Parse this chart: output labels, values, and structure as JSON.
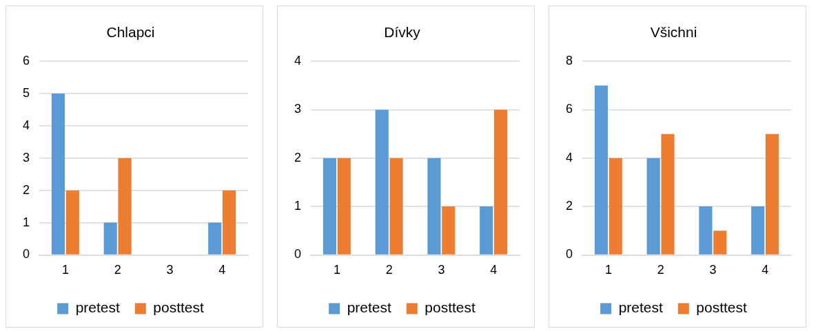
{
  "chart_data": [
    {
      "type": "bar",
      "title": "Chlapci",
      "categories": [
        "1",
        "2",
        "3",
        "4"
      ],
      "series": [
        {
          "name": "pretest",
          "color": "#5b9bd5",
          "values": [
            5,
            1,
            0,
            1
          ]
        },
        {
          "name": "posttest",
          "color": "#ed7d31",
          "values": [
            2,
            3,
            0,
            2
          ]
        }
      ],
      "ylim": [
        0,
        6
      ],
      "yticks": [
        0,
        1,
        2,
        3,
        4,
        5,
        6
      ],
      "grid": "y",
      "legend": "bottom"
    },
    {
      "type": "bar",
      "title": "Dívky",
      "categories": [
        "1",
        "2",
        "3",
        "4"
      ],
      "series": [
        {
          "name": "pretest",
          "color": "#5b9bd5",
          "values": [
            2,
            3,
            2,
            1
          ]
        },
        {
          "name": "posttest",
          "color": "#ed7d31",
          "values": [
            2,
            2,
            1,
            3
          ]
        }
      ],
      "ylim": [
        0,
        4
      ],
      "yticks": [
        0,
        1,
        2,
        3,
        4
      ],
      "grid": "y",
      "legend": "bottom"
    },
    {
      "type": "bar",
      "title": "Všichni",
      "categories": [
        "1",
        "2",
        "3",
        "4"
      ],
      "series": [
        {
          "name": "pretest",
          "color": "#5b9bd5",
          "values": [
            7,
            4,
            2,
            2
          ]
        },
        {
          "name": "posttest",
          "color": "#ed7d31",
          "values": [
            4,
            5,
            1,
            5
          ]
        }
      ],
      "ylim": [
        0,
        8
      ],
      "yticks": [
        0,
        2,
        4,
        6,
        8
      ],
      "grid": "y",
      "legend": "bottom"
    }
  ]
}
